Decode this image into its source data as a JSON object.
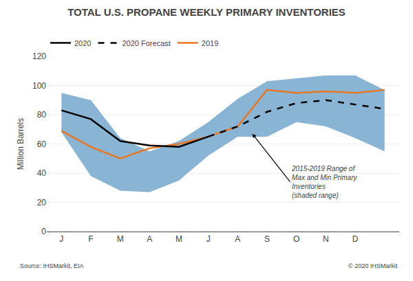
{
  "chart_data": {
    "type": "line",
    "title": "TOTAL U.S. PROPANE WEEKLY PRIMARY INVENTORIES",
    "ylabel": "Million Barrels",
    "annotation": "2015-2019 Range of\nMax and Min Primary\nInventories\n(shaded range)",
    "source": [
      "Source: IHSMarkit, EIA",
      "© 2020 IHSMarkit"
    ],
    "categories": [
      "J",
      "F",
      "M",
      "A",
      "M",
      "J",
      "A",
      "S",
      "O",
      "N",
      "D",
      null
    ],
    "series": [
      {
        "name": "2019",
        "color": "#e87722",
        "line_style": "solid",
        "values": [
          69,
          58,
          50,
          57,
          60,
          65,
          72,
          97,
          95,
          96,
          95,
          97
        ]
      },
      {
        "name": "2020 Forecast",
        "color": "#000000",
        "line_style": "dashed",
        "values": [
          null,
          null,
          null,
          null,
          null,
          65,
          72,
          82,
          88,
          90,
          87,
          84
        ]
      },
      {
        "name": "2020",
        "color": "#000000",
        "line_style": "solid",
        "values": [
          83,
          77,
          62,
          59,
          58,
          65,
          null,
          null,
          null,
          null,
          null,
          null
        ]
      }
    ],
    "range": {
      "min": [
        68,
        38,
        28,
        27,
        35,
        52,
        65,
        65,
        75,
        72,
        64,
        55
      ],
      "max": [
        95,
        90,
        64,
        55,
        62,
        75,
        91,
        103,
        105,
        107,
        107,
        97
      ],
      "color": "#8ab4d4"
    },
    "ylim": [
      0,
      120
    ],
    "yticks": [
      0,
      20,
      40,
      60,
      80,
      100,
      120
    ],
    "grid": "y",
    "legend": "upper left"
  }
}
